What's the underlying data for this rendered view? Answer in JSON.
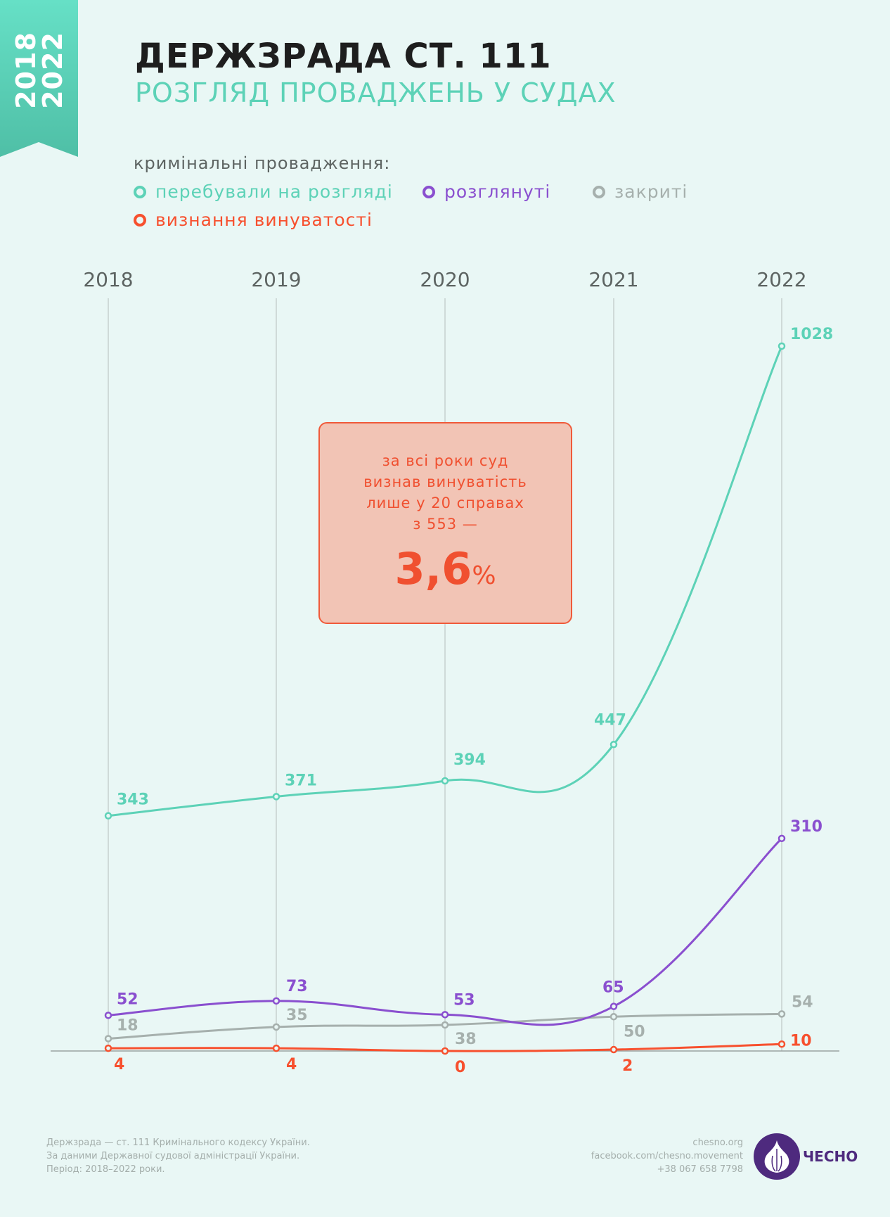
{
  "ribbon": {
    "year_from": "2018",
    "year_to": "2022",
    "color_top": "#66e0c6",
    "color_bottom": "#4fbfa6"
  },
  "header": {
    "title": "ДЕРЖЗРАДА СТ. 111",
    "subtitle": "РОЗГЛЯД ПРОВАДЖЕНЬ У СУДАХ"
  },
  "legend": {
    "title": "кримінальні провадження:",
    "items": [
      {
        "label": "перебували на розгляді",
        "color": "#5dd2b7"
      },
      {
        "label": "розглянуті",
        "color": "#8a4fcf"
      },
      {
        "label": "закриті",
        "color": "#a6b0ad"
      },
      {
        "label": "визнання винуватості",
        "color": "#f7502e"
      }
    ]
  },
  "callout": {
    "line1": "за всі роки суд",
    "line2": "визнав винуватість",
    "line3": "лише у 20 справах",
    "line4": "з 553 —",
    "value": "3,6",
    "unit": "%"
  },
  "chart_data": {
    "type": "line",
    "categories": [
      "2018",
      "2019",
      "2020",
      "2021",
      "2022"
    ],
    "ylim": [
      0,
      1028
    ],
    "grid": "vertical",
    "series": [
      {
        "name": "перебували на розгляді",
        "color": "#5dd2b7",
        "values": [
          343,
          371,
          394,
          447,
          1028
        ]
      },
      {
        "name": "розглянуті",
        "color": "#8a4fcf",
        "values": [
          52,
          73,
          53,
          65,
          310
        ]
      },
      {
        "name": "закриті",
        "color": "#a6b0ad",
        "values": [
          18,
          35,
          38,
          50,
          54
        ]
      },
      {
        "name": "визнання винуватості",
        "color": "#f7502e",
        "values": [
          4,
          4,
          0,
          2,
          10
        ]
      }
    ]
  },
  "footer": {
    "left": [
      "Держзрада — ст. 111 Кримінального кодексу України.",
      "За даними Державної судової адміністрації України.",
      "Період: 2018–2022 роки."
    ],
    "right": [
      "chesno.org",
      "facebook.com/chesno.movement",
      "+38 067 658 7798"
    ],
    "logo_text": "ЧЕСНО"
  }
}
